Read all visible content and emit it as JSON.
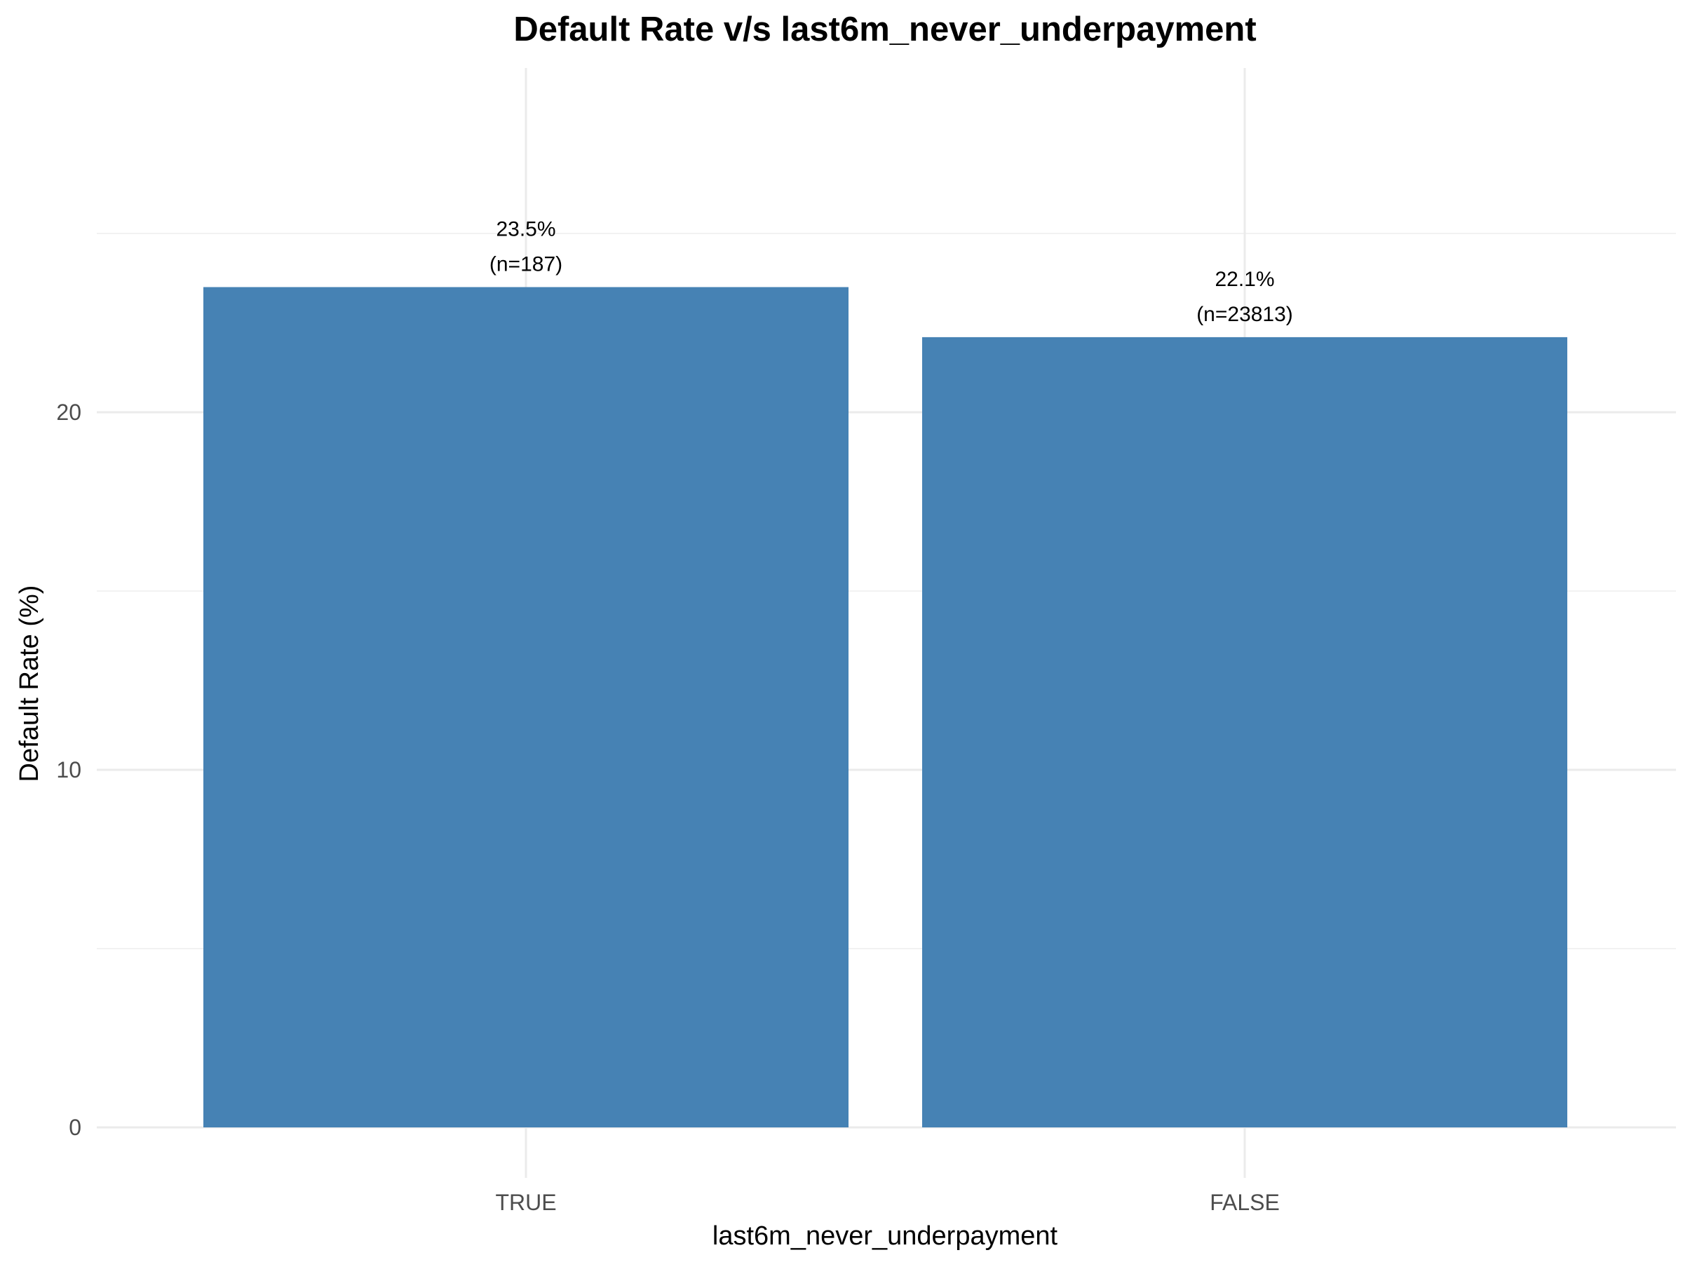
{
  "chart_data": {
    "type": "bar",
    "title": "Default Rate v/s last6m_never_underpayment",
    "xlabel": "last6m_never_underpayment",
    "ylabel": "Default Rate (%)",
    "categories": [
      "TRUE",
      "FALSE"
    ],
    "values": [
      23.5,
      22.1
    ],
    "labels": [
      {
        "pct": "23.5%",
        "n": "(n=187)"
      },
      {
        "pct": "22.1%",
        "n": "(n=23813)"
      }
    ],
    "yticks": [
      0,
      10,
      20
    ],
    "ylim": [
      0,
      28
    ],
    "grid": true,
    "legend": "none",
    "bar_color": "#4682B4"
  }
}
